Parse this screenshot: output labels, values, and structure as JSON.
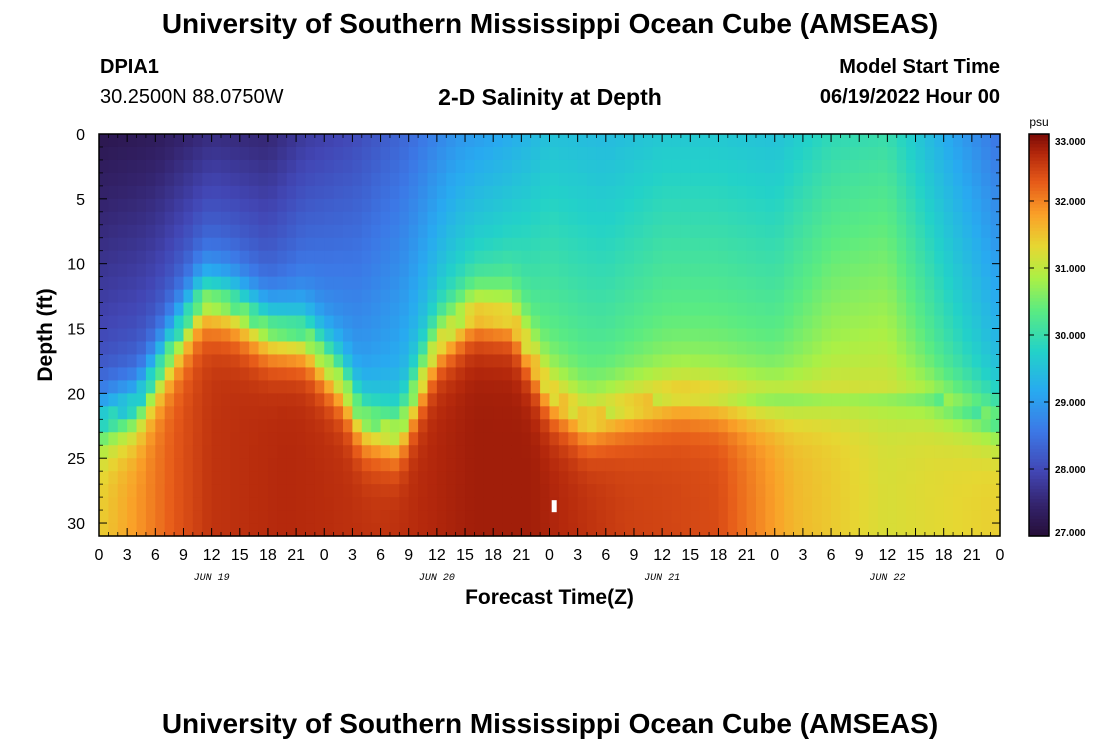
{
  "header": {
    "title": "University of Southern Mississippi Ocean Cube (AMSEAS)",
    "station_name": "DPIA1",
    "station_coords": "30.2500N  88.0750W",
    "subtitle": "2-D Salinity at Depth",
    "model_start_label": "Model Start Time",
    "model_start_value": "06/19/2022 Hour 00"
  },
  "footer": {
    "title": "University of Southern Mississippi Ocean Cube (AMSEAS)"
  },
  "colors": {
    "background": "#ffffff",
    "axis": "#000000",
    "marker": "#ffffff"
  },
  "chart_data": {
    "type": "heatmap",
    "title": "2-D Salinity at Depth",
    "xlabel": "Forecast Time(Z)",
    "ylabel": "Depth (ft)",
    "x_ticks": [
      "0",
      "3",
      "6",
      "9",
      "12",
      "15",
      "18",
      "21",
      "0",
      "3",
      "6",
      "9",
      "12",
      "15",
      "18",
      "21",
      "0",
      "3",
      "6",
      "9",
      "12",
      "15",
      "18",
      "21",
      "0",
      "3",
      "6",
      "9",
      "12",
      "15",
      "18",
      "21",
      "0"
    ],
    "x_range_hours": [
      0,
      96
    ],
    "date_labels": [
      {
        "text": "JUN 19",
        "hour": 12
      },
      {
        "text": "JUN 20",
        "hour": 36
      },
      {
        "text": "JUN 21",
        "hour": 60
      },
      {
        "text": "JUN 22",
        "hour": 84
      }
    ],
    "y_ticks": [
      0,
      5,
      10,
      15,
      20,
      25,
      30
    ],
    "y_range_ft": [
      0,
      31
    ],
    "colorbar": {
      "unit": "psu",
      "min": 27.0,
      "max": 33.0,
      "tick_labels": [
        "33.000",
        "32.000",
        "31.000",
        "30.000",
        "29.000",
        "28.000",
        "27.000"
      ],
      "tick_values": [
        33,
        32,
        31,
        30,
        29,
        28,
        27
      ]
    },
    "surface_salinity_psu": {
      "hours": [
        0,
        6,
        12,
        18,
        22,
        27,
        33,
        38,
        44,
        48,
        54,
        60,
        66,
        72,
        78,
        84,
        90,
        96
      ],
      "values": [
        27.2,
        27.3,
        27.6,
        27.5,
        27.8,
        28.0,
        28.4,
        28.9,
        29.2,
        29.5,
        29.4,
        29.6,
        29.6,
        29.5,
        29.9,
        30.0,
        29.2,
        28.5
      ]
    },
    "halocline_depth_ft": {
      "hours": [
        0,
        4,
        8,
        11,
        14,
        18,
        22,
        26,
        28,
        32,
        36,
        40,
        44,
        48,
        52,
        56,
        62,
        70,
        80,
        88,
        92,
        96
      ],
      "values": [
        22,
        21,
        16,
        12.5,
        13,
        15,
        15.5,
        19,
        22,
        23,
        16,
        13.5,
        14,
        20,
        22,
        21,
        20,
        20.5,
        20,
        20,
        21,
        22
      ]
    },
    "bottom_salinity_psu": {
      "hours": [
        0,
        8,
        12,
        20,
        30,
        40,
        46,
        56,
        66,
        74,
        84,
        96
      ],
      "values": [
        31.4,
        32.3,
        32.6,
        32.7,
        32.6,
        32.8,
        32.8,
        32.5,
        32.4,
        31.6,
        31.2,
        31.4
      ]
    },
    "marker": {
      "hour": 48.5,
      "depth_ft": 28.7
    }
  }
}
